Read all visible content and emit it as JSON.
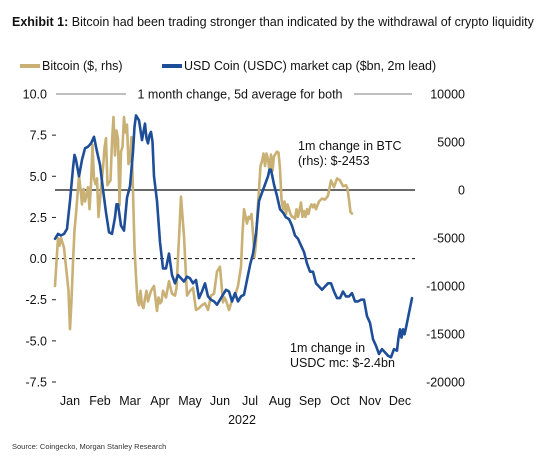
{
  "header": {
    "exhibit_label": "Exhibit 1:",
    "title": "Bitcoin had been trading stronger than indicated by the withdrawal of crypto liquidity"
  },
  "source": "Source: Coingecko, Morgan Stanley Research",
  "chart_data": {
    "type": "line",
    "subtitle": "1 month change, 5d average for both",
    "x_tick_labels": [
      "Jan",
      "Feb",
      "Mar",
      "Apr",
      "May",
      "Jun",
      "Jul",
      "Aug",
      "Sep",
      "Oct",
      "Nov",
      "Dec"
    ],
    "xlabel": "2022",
    "y_left": {
      "ticks": [
        "10.0",
        "7.5",
        "5.0",
        "2.5",
        "0.0",
        "-2.5",
        "-5.0",
        "-7.5"
      ],
      "ylim": [
        -7.5,
        10.0
      ]
    },
    "y_right": {
      "ticks": [
        "10000",
        "5000",
        "0",
        "-5000",
        "-10000",
        "-15000",
        "-20000"
      ],
      "ylim": [
        -20000,
        10000
      ]
    },
    "legend_placement": "top",
    "zero_lines": {
      "left_axis": "dashed",
      "right_axis": "solid"
    },
    "series": [
      {
        "name": "Bitcoin ($, rhs)",
        "axis": "right",
        "color": "#c9b074",
        "x": [
          0.0,
          0.1,
          0.15,
          0.2,
          0.3,
          0.35,
          0.4,
          0.45,
          0.5,
          0.55,
          0.6,
          0.65,
          0.7,
          0.75,
          0.8,
          0.85,
          0.9,
          0.95,
          1.0,
          1.05,
          1.1,
          1.15,
          1.2,
          1.25,
          1.3,
          1.35,
          1.4,
          1.45,
          1.5,
          1.55,
          1.6,
          1.65,
          1.7,
          1.75,
          1.8,
          1.85,
          1.9,
          1.95,
          2.0,
          2.05,
          2.1,
          2.15,
          2.2,
          2.25,
          2.3,
          2.35,
          2.4,
          2.45,
          2.5,
          2.55,
          2.6,
          2.65,
          2.7,
          2.75,
          2.8,
          2.85,
          2.9,
          2.95,
          3.0,
          3.05,
          3.1,
          3.2,
          3.3,
          3.4,
          3.45,
          3.5,
          3.55,
          3.6,
          3.7,
          3.8,
          3.9,
          4.0,
          4.05,
          4.1,
          4.15,
          4.2,
          4.3,
          4.4,
          4.5,
          4.6,
          4.7,
          4.8,
          4.9,
          5.0,
          5.1,
          5.2,
          5.3,
          5.4,
          5.5,
          5.6,
          5.65,
          5.7,
          5.8,
          5.9,
          6.0,
          6.1,
          6.2,
          6.25,
          6.3,
          6.4,
          6.45,
          6.5,
          6.55,
          6.6,
          6.65,
          6.7,
          6.75,
          6.8,
          6.85,
          6.9,
          6.95,
          7.0,
          7.05,
          7.1,
          7.15,
          7.2,
          7.25,
          7.3,
          7.4,
          7.45,
          7.5,
          7.55,
          7.6,
          7.65,
          7.7,
          7.75,
          7.8,
          7.85,
          7.9,
          7.95,
          8.0,
          8.05,
          8.1,
          8.15,
          8.2,
          8.25,
          8.3,
          8.35,
          8.4,
          8.45,
          8.5,
          8.55,
          8.6,
          8.65,
          8.7,
          8.8,
          8.9,
          9.0,
          9.1,
          9.2,
          9.3,
          9.4,
          9.5,
          9.6,
          9.7,
          9.75,
          9.8,
          9.85,
          9.9
        ],
        "values": [
          -10000,
          -5000,
          -5800,
          -5000,
          -6000,
          -7500,
          -9000,
          -10500,
          -14500,
          -11500,
          -7500,
          -4200,
          -2500,
          -500,
          1500,
          100,
          -1500,
          100,
          -1200,
          -500,
          300,
          -2000,
          600,
          4700,
          1200,
          600,
          1200,
          -2800,
          -1000,
          700,
          2300,
          4400,
          5400,
          500,
          800,
          1000,
          5000,
          7600,
          3600,
          6200,
          5300,
          -1600,
          4000,
          4500,
          7600,
          6000,
          6800,
          2700,
          3200,
          5500,
          -200,
          -6000,
          -9000,
          -11500,
          -12000,
          -10500,
          -12000,
          -12300,
          -11300,
          -10500,
          -11600,
          -10500,
          -10000,
          -12600,
          -11200,
          -11800,
          -11600,
          -10500,
          -11200,
          -9500,
          -10800,
          -11000,
          -10200,
          -7000,
          -4000,
          -700,
          -4800,
          -11000,
          -10500,
          -10200,
          -12500,
          -12300,
          -12000,
          -11800,
          -12500,
          -11000,
          -10800,
          -8500,
          -8000,
          -11700,
          -11200,
          -11500,
          -12500,
          -11500,
          -11000,
          -10000,
          -8000,
          -4500,
          -2000,
          -3500,
          -2800,
          -3000,
          -2500,
          -4500,
          -7000,
          -5500,
          -2200,
          0,
          2500,
          3000,
          3800,
          2500,
          3800,
          3200,
          2000,
          3700,
          2000,
          3500,
          4000,
          3900,
          2200,
          -1000,
          -2000,
          -1200,
          -2500,
          -1500,
          -2000,
          -2500,
          -2800,
          -2800,
          -3000,
          -2000,
          -2800,
          -2100,
          -1300,
          -2800,
          -2200,
          -2800,
          -2000,
          -2500,
          -1800,
          -1500,
          -1800,
          -1500,
          -2000,
          -1200,
          -900,
          -1000,
          -600,
          1000,
          300,
          1200,
          1000,
          400,
          500,
          100,
          -1000,
          -2300,
          -2453
        ]
      },
      {
        "name": "USD Coin (USDC) market cap ($bn, 2m lead)",
        "axis": "left",
        "color": "#1f4e99",
        "x": [
          0.0,
          0.1,
          0.2,
          0.3,
          0.4,
          0.5,
          0.6,
          0.65,
          0.7,
          0.8,
          0.9,
          1.0,
          1.1,
          1.2,
          1.3,
          1.4,
          1.5,
          1.6,
          1.7,
          1.8,
          1.9,
          2.0,
          2.05,
          2.1,
          2.2,
          2.3,
          2.4,
          2.5,
          2.6,
          2.65,
          2.7,
          2.8,
          2.9,
          3.0,
          3.05,
          3.1,
          3.15,
          3.2,
          3.25,
          3.3,
          3.4,
          3.5,
          3.6,
          3.7,
          3.8,
          3.9,
          4.0,
          4.1,
          4.2,
          4.3,
          4.4,
          4.5,
          4.6,
          4.7,
          4.8,
          4.9,
          5.0,
          5.1,
          5.2,
          5.3,
          5.4,
          5.5,
          5.6,
          5.7,
          5.8,
          5.9,
          6.0,
          6.1,
          6.2,
          6.3,
          6.4,
          6.5,
          6.6,
          6.7,
          6.8,
          6.9,
          7.0,
          7.1,
          7.15,
          7.2,
          7.3,
          7.4,
          7.5,
          7.6,
          7.7,
          7.8,
          7.9,
          8.0,
          8.1,
          8.2,
          8.3,
          8.4,
          8.5,
          8.6,
          8.7,
          8.8,
          8.9,
          9.0,
          9.1,
          9.2,
          9.3,
          9.4,
          9.5,
          9.6,
          9.7,
          9.8,
          9.9,
          10.0,
          10.1,
          10.2,
          10.3,
          10.4,
          10.5,
          10.6,
          10.7,
          10.8,
          10.9,
          11.0,
          11.1,
          11.2,
          11.3,
          11.4,
          11.45,
          11.5,
          11.55,
          11.6,
          11.65,
          11.7,
          11.8,
          11.9
        ],
        "values": [
          1.2,
          1.5,
          1.4,
          1.5,
          1.8,
          3.5,
          5.5,
          6.3,
          6.0,
          5.0,
          6.0,
          6.7,
          6.8,
          7.0,
          7.4,
          6.5,
          5.7,
          4.2,
          2.8,
          1.6,
          1.5,
          2.5,
          3.3,
          3.3,
          2.0,
          1.7,
          3.7,
          4.4,
          6.5,
          8.0,
          8.7,
          8.4,
          7.2,
          8.2,
          7.3,
          7.0,
          7.5,
          7.7,
          7.1,
          5.0,
          3.5,
          1.0,
          -0.6,
          -0.6,
          0.3,
          -1.0,
          -1.5,
          -1.0,
          -1.2,
          -1.4,
          -1.1,
          -1.2,
          -1.5,
          -1.3,
          -2.4,
          -2.0,
          -1.5,
          -2.3,
          -2.5,
          -2.6,
          -2.8,
          -2.5,
          -2.2,
          -1.9,
          -2.0,
          -2.6,
          -2.1,
          -2.6,
          -2.3,
          -2.2,
          -1.3,
          -0.4,
          0.3,
          1.5,
          3.5,
          4.0,
          4.5,
          5.0,
          5.4,
          5.4,
          4.5,
          3.8,
          3.0,
          2.8,
          2.5,
          2.4,
          2.0,
          1.4,
          1.2,
          0.8,
          0.4,
          -0.3,
          -0.8,
          -0.8,
          -1.5,
          -1.7,
          -1.9,
          -1.7,
          -1.5,
          -1.5,
          -2.0,
          -2.4,
          -2.4,
          -2.0,
          -2.3,
          -2.3,
          -2.1,
          -2.6,
          -2.6,
          -2.5,
          -2.5,
          -3.5,
          -3.9,
          -4.9,
          -5.3,
          -5.8,
          -5.5,
          -5.7,
          -5.9,
          -6.0,
          -5.5,
          -5.6,
          -4.8,
          -4.3,
          -4.8,
          -4.3,
          -4.6,
          -4.2,
          -3.3,
          -2.4
        ]
      }
    ],
    "annotations": [
      {
        "lines": [
          "1m change in BTC",
          "(rhs): $-2453"
        ]
      },
      {
        "lines": [
          "1m change in",
          "USDC mc: $-2.4bn"
        ]
      }
    ]
  }
}
